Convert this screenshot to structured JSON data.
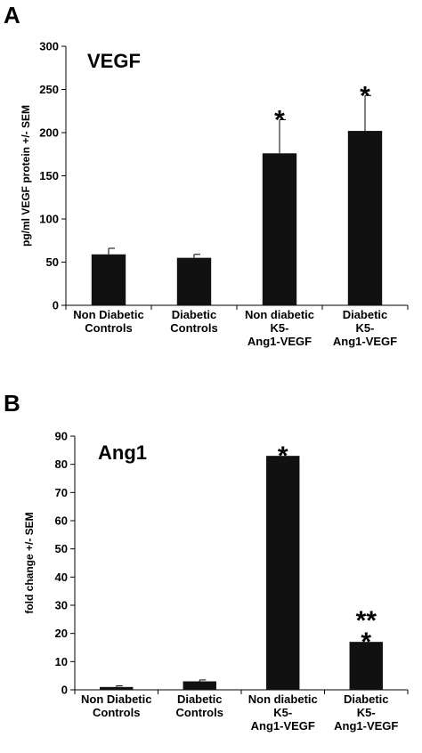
{
  "chart_data": [
    {
      "panel": "A",
      "type": "bar",
      "title": "VEGF",
      "ylabel": "pg/ml VEGF protein +/- SEM",
      "ylim": [
        0,
        300
      ],
      "yticks": [
        0,
        50,
        100,
        150,
        200,
        250,
        300
      ],
      "categories": [
        [
          "Non Diabetic",
          "Controls"
        ],
        [
          "Diabetic",
          "Controls"
        ],
        [
          "Non diabetic",
          "K5-",
          "Ang1-VEGF"
        ],
        [
          "Diabetic",
          "K5-",
          "Ang1-VEGF"
        ]
      ],
      "values": [
        59,
        55,
        176,
        202
      ],
      "errors": [
        7,
        4,
        39,
        41
      ],
      "annotations": [
        [],
        [],
        [
          "*"
        ],
        [
          "*"
        ]
      ],
      "bar_color": "#111111"
    },
    {
      "panel": "B",
      "type": "bar",
      "title": "Ang1",
      "ylabel": "fold change +/- SEM",
      "ylim": [
        0,
        90
      ],
      "yticks": [
        0,
        10,
        20,
        30,
        40,
        50,
        60,
        70,
        80,
        90
      ],
      "categories": [
        [
          "Non Diabetic",
          "Controls"
        ],
        [
          "Diabetic",
          "Controls"
        ],
        [
          "Non diabetic",
          "K5-",
          "Ang1-VEGF"
        ],
        [
          "Diabetic",
          "K5-",
          "Ang1-VEGF"
        ]
      ],
      "values": [
        1,
        3,
        83,
        17
      ],
      "errors": [
        0.4,
        0.5,
        0,
        0
      ],
      "annotations": [
        [],
        [],
        [
          "*"
        ],
        [
          "**",
          "*"
        ]
      ],
      "bar_color": "#111111"
    }
  ]
}
